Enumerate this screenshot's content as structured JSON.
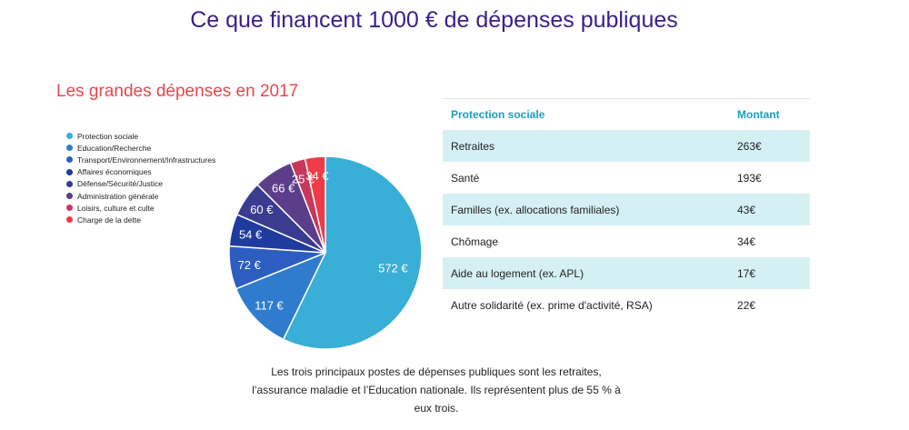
{
  "page": {
    "title": "Ce que financent 1000 € de dépenses publiques",
    "subtitle": "Les grandes dépenses en 2017",
    "footnote": "Les trois principaux postes de dépenses publiques sont les retraites, l’assurance maladie et l’Education nationale. Ils représentent plus de 55 % à eux trois."
  },
  "chart_data": {
    "type": "pie",
    "title": "Les grandes dépenses en 2017",
    "legend_position": "left",
    "slices": [
      {
        "name": "Protection sociale",
        "value": 572,
        "label": "572 €",
        "color": "#39aed6"
      },
      {
        "name": "Education/Recherche",
        "value": 117,
        "label": "117 €",
        "color": "#2f7ccf"
      },
      {
        "name": "Transport/Environnement/Infrastructures",
        "value": 72,
        "label": "72 €",
        "color": "#2c5ec2"
      },
      {
        "name": "Affaires économiques",
        "value": 54,
        "label": "54 €",
        "color": "#1f3b9e"
      },
      {
        "name": "Défense/Sécurité/Justice",
        "value": 60,
        "label": "60 €",
        "color": "#3a3c8f"
      },
      {
        "name": "Administration générale",
        "value": 66,
        "label": "66 €",
        "color": "#5b3d8a"
      },
      {
        "name": "Loisirs, culture et culte",
        "value": 25,
        "label": "25 €",
        "color": "#c8385c"
      },
      {
        "name": "Charge de la dette",
        "value": 34,
        "label": "34 €",
        "color": "#ee3b47"
      }
    ]
  },
  "table": {
    "headers": {
      "category": "Protection sociale",
      "amount": "Montant"
    },
    "rows": [
      {
        "label": "Retraites",
        "amount": "263€"
      },
      {
        "label": "Santé",
        "amount": "193€"
      },
      {
        "label": "Familles (ex. allocations familiales)",
        "amount": "43€"
      },
      {
        "label": "Chômage",
        "amount": "34€"
      },
      {
        "label": "Aide au logement (ex. APL)",
        "amount": "17€"
      },
      {
        "label": "Autre solidarité (ex. prime d'activité, RSA)",
        "amount": "22€"
      }
    ],
    "shade_color": "#d5f0f3",
    "header_color": "#1f9cbb"
  }
}
